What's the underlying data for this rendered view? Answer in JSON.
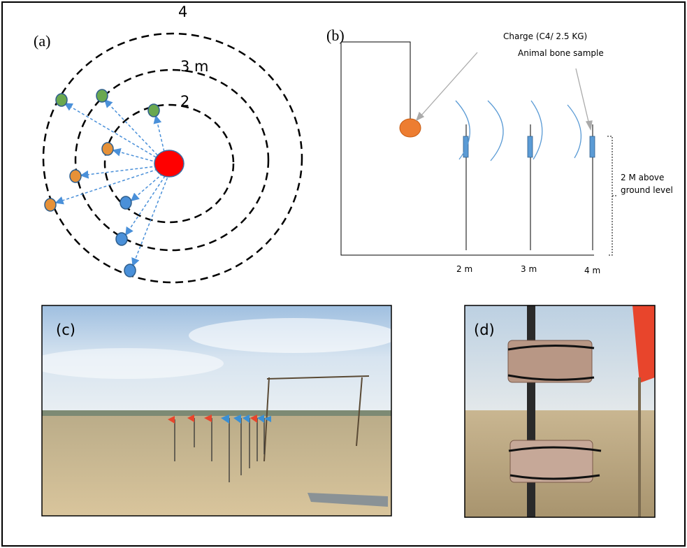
{
  "panel_a": {
    "label": "(a)",
    "ring_labels": [
      "4",
      "3 m",
      "2"
    ]
  },
  "panel_b": {
    "label": "(b)",
    "charge_label": "Charge (C4/ 2.5 KG)",
    "bone_label": "Animal bone sample",
    "height_label": [
      "2 M above",
      "ground level"
    ],
    "distance_labels": [
      "2 m",
      "3 m",
      "4 m"
    ]
  },
  "panel_c": {
    "label": "(c)"
  },
  "panel_d": {
    "label": "(d)"
  }
}
